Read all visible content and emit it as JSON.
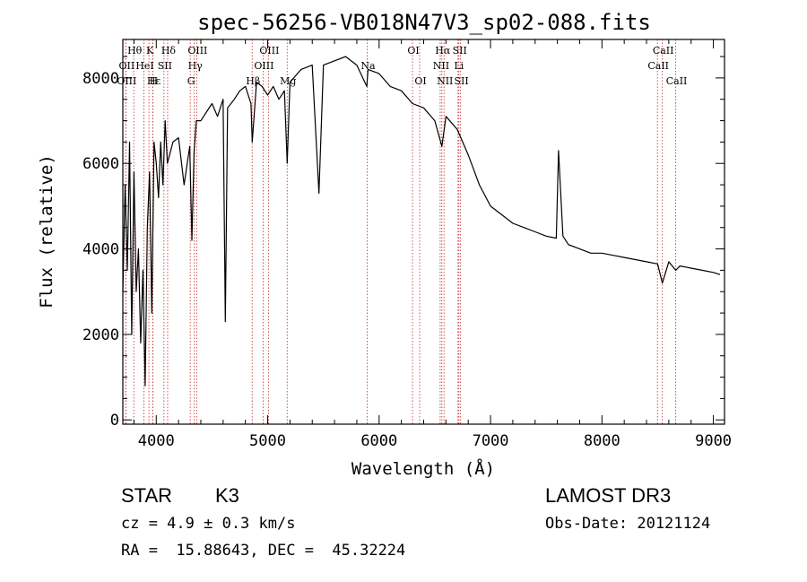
{
  "chart_data": {
    "type": "line",
    "title": "spec-56256-VB018N47V3_sp02-088.fits",
    "xlabel": "Wavelength (Å)",
    "ylabel": "Flux (relative)",
    "xlim": [
      3700,
      9100
    ],
    "ylim": [
      -100,
      8900
    ],
    "x_ticks": [
      4000,
      5000,
      6000,
      7000,
      8000,
      9000
    ],
    "x_tick_labels": [
      "4000",
      "5000",
      "6000",
      "7000",
      "8000",
      "9000"
    ],
    "y_ticks": [
      0,
      2000,
      4000,
      6000,
      8000
    ],
    "y_tick_labels": [
      "0",
      "2000",
      "4000",
      "6000",
      "8000"
    ],
    "series": [
      {
        "name": "flux",
        "x": [
          3700,
          3720,
          3740,
          3760,
          3780,
          3800,
          3820,
          3840,
          3860,
          3880,
          3900,
          3920,
          3940,
          3960,
          3980,
          4000,
          4020,
          4040,
          4060,
          4080,
          4100,
          4150,
          4200,
          4250,
          4300,
          4320,
          4340,
          4360,
          4400,
          4450,
          4500,
          4550,
          4600,
          4620,
          4640,
          4700,
          4750,
          4800,
          4850,
          4861,
          4900,
          4950,
          5000,
          5050,
          5100,
          5150,
          5175,
          5200,
          5300,
          5400,
          5460,
          5500,
          5600,
          5700,
          5800,
          5890,
          5900,
          6000,
          6100,
          6200,
          6300,
          6400,
          6500,
          6563,
          6600,
          6700,
          6750,
          6800,
          6900,
          7000,
          7100,
          7200,
          7300,
          7400,
          7500,
          7590,
          7610,
          7650,
          7700,
          7800,
          7900,
          8000,
          8100,
          8200,
          8300,
          8400,
          8500,
          8542,
          8600,
          8662,
          8700,
          8800,
          8900,
          9000,
          9060
        ],
        "y": [
          3000,
          5500,
          3500,
          6500,
          2000,
          5800,
          3000,
          4000,
          1800,
          3500,
          800,
          4500,
          5800,
          2500,
          6500,
          6000,
          5200,
          6500,
          5500,
          7000,
          6000,
          6500,
          6600,
          5500,
          6400,
          4200,
          6300,
          7000,
          7000,
          7200,
          7400,
          7100,
          7500,
          2300,
          7300,
          7500,
          7700,
          7800,
          7400,
          6500,
          7900,
          7800,
          7600,
          7800,
          7500,
          7700,
          6000,
          7900,
          8200,
          8300,
          5300,
          8300,
          8400,
          8500,
          8300,
          7800,
          8200,
          8100,
          7800,
          7700,
          7400,
          7300,
          7000,
          6400,
          7100,
          6800,
          6500,
          6200,
          5500,
          5000,
          4800,
          4600,
          4500,
          4400,
          4300,
          4250,
          6300,
          4300,
          4100,
          4000,
          3900,
          3900,
          3850,
          3800,
          3750,
          3700,
          3650,
          3200,
          3700,
          3500,
          3600,
          3550,
          3500,
          3450,
          3400
        ]
      }
    ],
    "line_markers": [
      {
        "label": "Hθ",
        "x": 3798,
        "row": 0
      },
      {
        "label": "OII",
        "x": 3727,
        "row": 1
      },
      {
        "label": "OIII",
        "x": 3727,
        "row": 2
      },
      {
        "label": "K",
        "x": 3934,
        "row": 0
      },
      {
        "label": "HeI",
        "x": 3889,
        "row": 1
      },
      {
        "label": "Hε",
        "x": 3970,
        "row": 2
      },
      {
        "label": "Hδ",
        "x": 4102,
        "row": 0
      },
      {
        "label": "SII",
        "x": 4069,
        "row": 1
      },
      {
        "label": "H",
        "x": 3968,
        "row": 2
      },
      {
        "label": "OIII",
        "x": 4363,
        "row": 0
      },
      {
        "label": "Hγ",
        "x": 4341,
        "row": 1
      },
      {
        "label": "G",
        "x": 4305,
        "row": 2
      },
      {
        "label": "OIII",
        "x": 5007,
        "row": 0
      },
      {
        "label": "OIII",
        "x": 4959,
        "row": 1
      },
      {
        "label": "Hβ",
        "x": 4861,
        "row": 2
      },
      {
        "label": "Mg",
        "x": 5175,
        "row": 2
      },
      {
        "label": "Na",
        "x": 5893,
        "row": 1
      },
      {
        "label": "OI",
        "x": 6300,
        "row": 0
      },
      {
        "label": "OI",
        "x": 6364,
        "row": 2
      },
      {
        "label": "Hα",
        "x": 6563,
        "row": 0
      },
      {
        "label": "NII",
        "x": 6548,
        "row": 1
      },
      {
        "label": "NII",
        "x": 6583,
        "row": 2
      },
      {
        "label": "SII",
        "x": 6716,
        "row": 0
      },
      {
        "label": "Li",
        "x": 6708,
        "row": 1
      },
      {
        "label": "SII",
        "x": 6731,
        "row": 2
      },
      {
        "label": "CaII",
        "x": 8542,
        "row": 0
      },
      {
        "label": "CaII",
        "x": 8498,
        "row": 1
      },
      {
        "label": "CaII",
        "x": 8662,
        "row": 2
      }
    ]
  },
  "info": {
    "class": "STAR",
    "subclass": "K3",
    "survey": "LAMOST DR3",
    "cz": "cz = 4.9 ± 0.3 km/s",
    "obs_date": "Obs-Date: 20121124",
    "radec": "RA =  15.88643, DEC =  45.32224"
  }
}
